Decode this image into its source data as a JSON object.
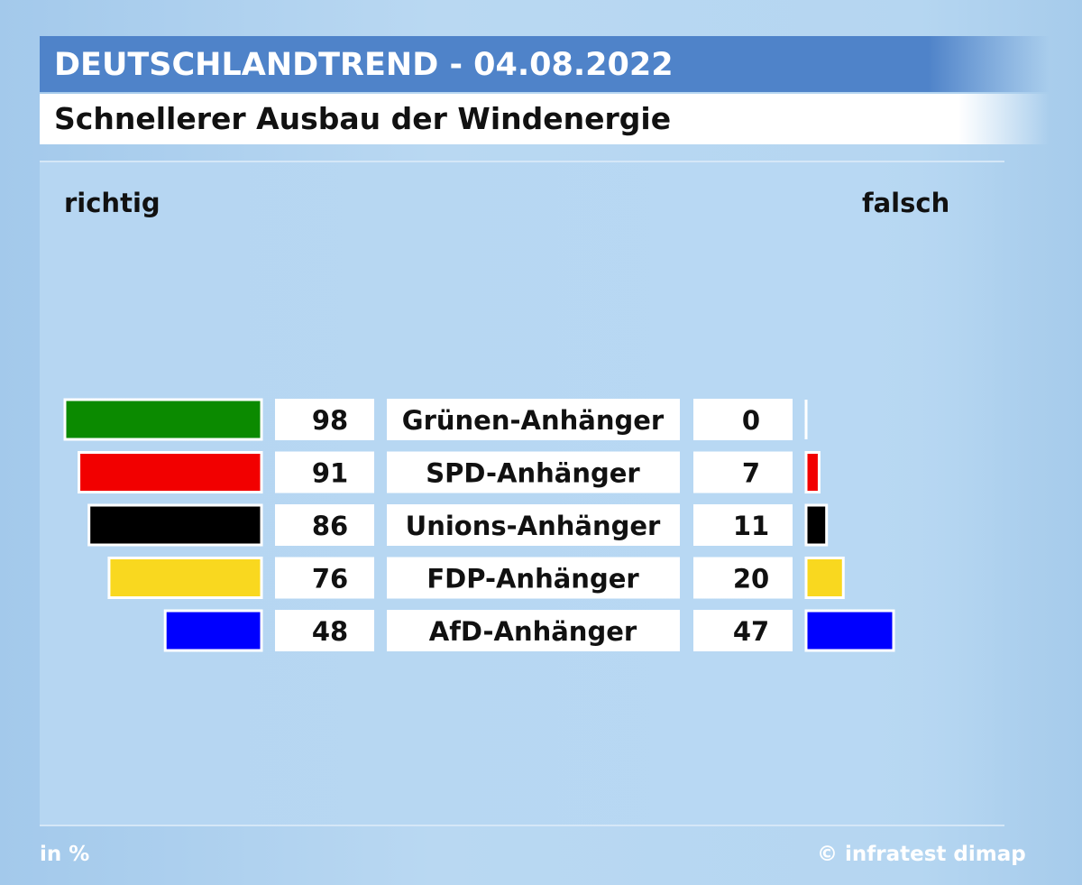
{
  "header": {
    "title": "DEUTSCHLANDTREND - 04.08.2022"
  },
  "subtitle": "Schnellerer Ausbau der Windenergie",
  "columns": {
    "left": "richtig",
    "right": "falsch"
  },
  "footer": {
    "unit": "in %",
    "source": "© infratest dimap"
  },
  "chart_data": {
    "type": "bar",
    "title": "Schnellerer Ausbau der Windenergie",
    "categories": [
      "Grünen-Anhänger",
      "SPD-Anhänger",
      "Unions-Anhänger",
      "FDP-Anhänger",
      "AfD-Anhänger"
    ],
    "colors": [
      "#0b8a00",
      "#f20000",
      "#000000",
      "#f9d81f",
      "#0000ff"
    ],
    "series": [
      {
        "name": "richtig",
        "values": [
          98,
          91,
          86,
          76,
          48
        ]
      },
      {
        "name": "falsch",
        "values": [
          0,
          7,
          11,
          20,
          47
        ]
      }
    ],
    "ylim": [
      0,
      100
    ],
    "unit": "in %"
  }
}
